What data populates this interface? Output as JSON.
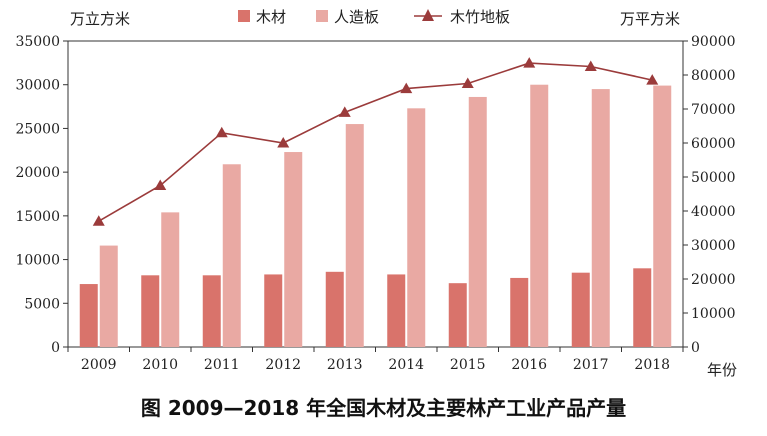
{
  "caption": "图   2009—2018 年全国木材及主要林产工业产品产量",
  "chart_data": {
    "type": "bar",
    "categories": [
      "2009",
      "2010",
      "2011",
      "2012",
      "2013",
      "2014",
      "2015",
      "2016",
      "2017",
      "2018"
    ],
    "series": [
      {
        "name": "木材",
        "type": "bar",
        "axis": "left",
        "color": "#d9736b",
        "values": [
          7200,
          8200,
          8200,
          8300,
          8600,
          8300,
          7300,
          7900,
          8500,
          9000
        ]
      },
      {
        "name": "人造板",
        "type": "bar",
        "axis": "left",
        "color": "#e9a9a3",
        "values": [
          11600,
          15400,
          20900,
          22300,
          25500,
          27300,
          28600,
          30000,
          29500,
          29900
        ]
      },
      {
        "name": "木竹地板",
        "type": "line",
        "axis": "right",
        "color": "#9b3b3b",
        "marker": "triangle",
        "values": [
          37000,
          47500,
          63000,
          60000,
          69000,
          76000,
          77500,
          83500,
          82500,
          78500
        ]
      }
    ],
    "ylabel_left": "万立方米",
    "ylabel_right": "万平方米",
    "xlabel": "年份",
    "ylim_left": [
      0,
      35000
    ],
    "ylim_right": [
      0,
      90000
    ],
    "yticks_left": [
      "0",
      "5000",
      "10000",
      "15000",
      "20000",
      "25000",
      "30000",
      "35000"
    ],
    "yticks_right": [
      "0",
      "10000",
      "20000",
      "30000",
      "40000",
      "50000",
      "60000",
      "70000",
      "80000",
      "90000"
    ],
    "grid": false,
    "legend_position": "top-center"
  }
}
